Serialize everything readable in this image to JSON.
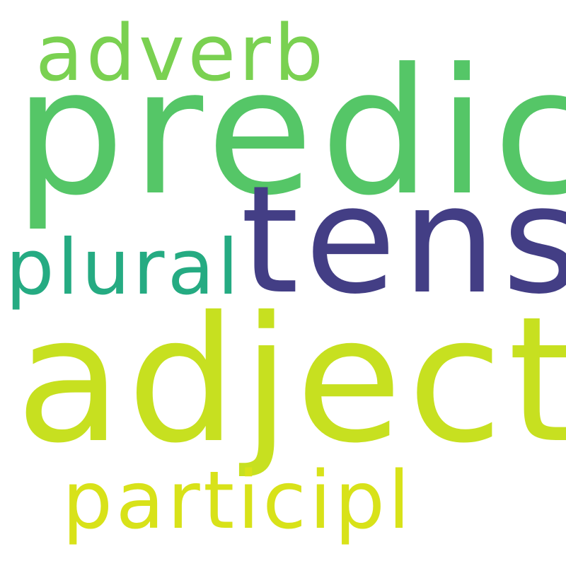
{
  "words": [
    {
      "key": "predic",
      "text": "predic",
      "color": "#55c667"
    },
    {
      "key": "tens",
      "text": "tens",
      "color": "#433e85"
    },
    {
      "key": "adject",
      "text": "adject",
      "color": "#c7e020"
    },
    {
      "key": "adverb",
      "text": "adverb",
      "color": "#7ad151"
    },
    {
      "key": "plural",
      "text": "plural",
      "color": "#25ab82"
    },
    {
      "key": "participl",
      "text": "participl",
      "color": "#d8e219"
    }
  ]
}
